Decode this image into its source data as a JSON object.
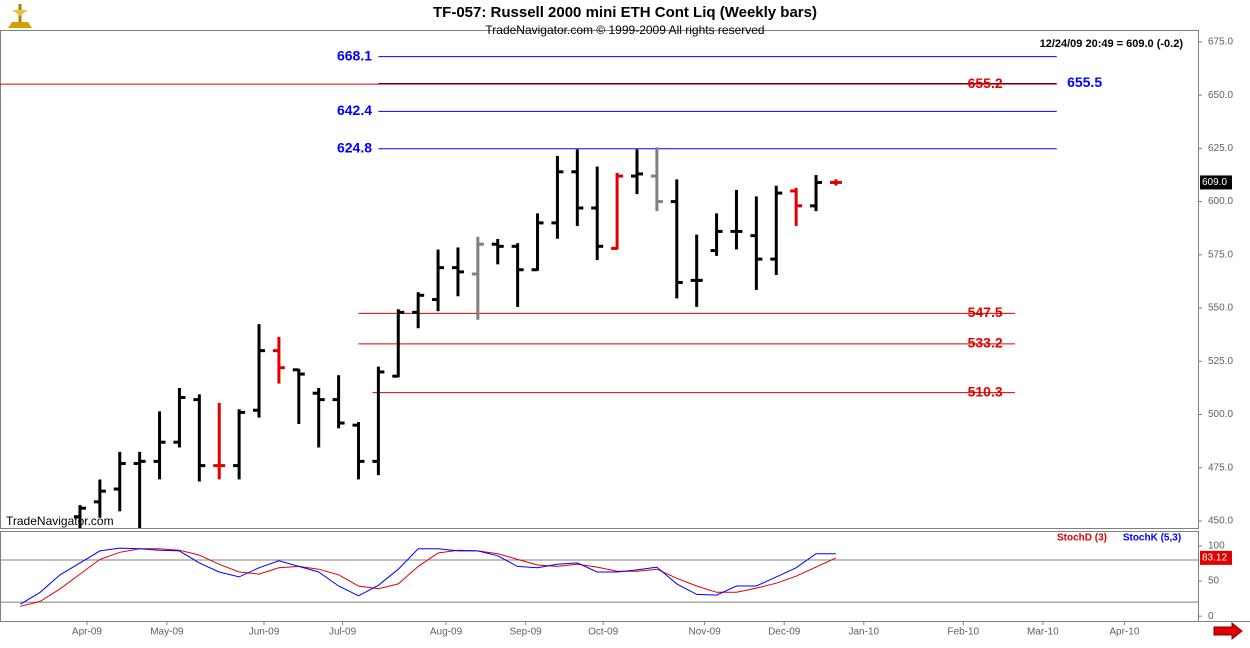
{
  "chart_data": [
    {
      "type": "ohlc",
      "title": "TF-057:  Russell 2000 mini ETH Cont Liq  (Weekly bars)",
      "subtitle": "TradeNavigator.com © 1999-2009 All rights reserved",
      "info": "12/24/09 20:49 = 609.0 (-0.2)",
      "watermark": "TradeNavigator.com",
      "x": [
        0,
        1,
        2,
        3,
        4,
        5,
        6,
        7,
        8,
        9,
        10,
        11,
        12,
        13,
        14,
        15,
        16,
        17,
        18,
        19,
        20,
        21,
        22,
        23,
        24,
        25,
        26,
        27,
        28,
        29,
        30,
        31,
        32,
        33,
        34,
        35,
        36,
        37,
        38
      ],
      "open": [
        452,
        459,
        465,
        477,
        478,
        487,
        507,
        476,
        476,
        502,
        530,
        521,
        510,
        507,
        495,
        478,
        518,
        548,
        554,
        569,
        566,
        580,
        579,
        568,
        590,
        614,
        597,
        578,
        612,
        612,
        600,
        563,
        577,
        586,
        584,
        573,
        605,
        598,
        609
      ],
      "high": [
        457,
        469,
        482,
        482,
        501,
        512,
        509,
        505,
        502,
        542,
        536,
        521,
        512,
        518,
        496,
        522,
        549,
        557,
        577,
        578,
        583,
        582,
        580,
        594,
        621,
        624,
        616,
        613,
        624,
        625,
        610,
        584,
        594,
        605,
        602,
        607,
        606,
        612,
        610
      ],
      "low": [
        447,
        452,
        455,
        447,
        470,
        485,
        469,
        470,
        470,
        499,
        515,
        496,
        485,
        494,
        470,
        472,
        518,
        541,
        549,
        556,
        545,
        571,
        551,
        568,
        583,
        589,
        573,
        578,
        604,
        596,
        555,
        551,
        575,
        578,
        559,
        566,
        589,
        596,
        608
      ],
      "close": [
        456,
        464,
        477,
        478,
        487,
        508,
        476,
        476,
        501,
        530,
        522,
        519,
        507,
        496,
        478,
        520,
        548,
        556,
        569,
        567,
        580,
        579,
        568,
        590,
        614,
        597,
        579,
        612,
        613,
        600,
        562,
        563,
        586,
        586,
        573,
        604,
        598,
        609,
        609
      ],
      "colors": [
        "#000000",
        "#000000",
        "#000000",
        "#000000",
        "#000000",
        "#000000",
        "#000000",
        "#e00000",
        "#000000",
        "#000000",
        "#e00000",
        "#000000",
        "#000000",
        "#000000",
        "#000000",
        "#000000",
        "#000000",
        "#000000",
        "#000000",
        "#000000",
        "#808080",
        "#000000",
        "#000000",
        "#000000",
        "#000000",
        "#000000",
        "#000000",
        "#e00000",
        "#000000",
        "#808080",
        "#000000",
        "#000000",
        "#000000",
        "#000000",
        "#000000",
        "#000000",
        "#e00000",
        "#000000",
        "#e00000"
      ],
      "xlim": [
        -4.02,
        56.2
      ],
      "xticks": [
        {
          "value": 0.35,
          "label": "Apr-09"
        },
        {
          "value": 4.37,
          "label": "May-09"
        },
        {
          "value": 9.25,
          "label": "Jun-09"
        },
        {
          "value": 13.2,
          "label": "Jul-09"
        },
        {
          "value": 18.4,
          "label": "Aug-09"
        },
        {
          "value": 22.4,
          "label": "Sep-09"
        },
        {
          "value": 26.3,
          "label": "Oct-09"
        },
        {
          "value": 31.4,
          "label": "Nov-09"
        },
        {
          "value": 35.4,
          "label": "Dec-09"
        },
        {
          "value": 39.4,
          "label": "Jan-10"
        },
        {
          "value": 44.4,
          "label": "Feb-10"
        },
        {
          "value": 48.4,
          "label": "Mar-10"
        },
        {
          "value": 52.5,
          "label": "Apr-10"
        }
      ],
      "ylim": [
        446.7,
        680.6
      ],
      "yticks": [
        {
          "value": 450,
          "label": "450.0"
        },
        {
          "value": 475,
          "label": "475.0"
        },
        {
          "value": 500,
          "label": "500.0"
        },
        {
          "value": 525,
          "label": "525.0"
        },
        {
          "value": 550,
          "label": "550.0"
        },
        {
          "value": 575,
          "label": "575.0"
        },
        {
          "value": 600,
          "label": "600.0"
        },
        {
          "value": 625,
          "label": "625.0"
        },
        {
          "value": 650,
          "label": "650.0"
        },
        {
          "value": 675,
          "label": "675.0"
        }
      ],
      "last_price": {
        "value": 609,
        "label": "609.0"
      },
      "levels": [
        {
          "value": 668.1,
          "color": "#0000ff",
          "label_color": "#0000ff",
          "x_range": [
            15,
            49.1
          ],
          "label_x": 13.8
        },
        {
          "value": 655.5,
          "color": "#000060",
          "label_color": "#0000ff",
          "x_range": [
            15,
            49.1
          ],
          "label_x": 50.5
        },
        {
          "value": 655.2,
          "color": "#e00000",
          "label_color": "#e00000",
          "x_range": [
            -4.02,
            49.1
          ],
          "label_x": 45.5
        },
        {
          "value": 642.4,
          "color": "#0000ff",
          "label_color": "#0000ff",
          "x_range": [
            15,
            49.1
          ],
          "label_x": 13.8
        },
        {
          "value": 624.8,
          "color": "#0000ff",
          "label_color": "#0000ff",
          "x_range": [
            15,
            49.1
          ],
          "label_x": 13.8
        },
        {
          "value": 547.5,
          "color": "#e00000",
          "label_color": "#e00000",
          "x_range": [
            14,
            47
          ],
          "label_x": 45.5
        },
        {
          "value": 533.2,
          "color": "#e00000",
          "label_color": "#e00000",
          "x_range": [
            14,
            47
          ],
          "label_x": 45.5
        },
        {
          "value": 510.3,
          "color": "#e00000",
          "label_color": "#e00000",
          "x_range": [
            14.7,
            47
          ],
          "label_x": 45.5
        }
      ]
    },
    {
      "type": "line",
      "x": [
        -3,
        -2,
        -1,
        0,
        1,
        2,
        3,
        4,
        5,
        6,
        7,
        8,
        9,
        10,
        11,
        12,
        13,
        14,
        15,
        16,
        17,
        18,
        19,
        20,
        21,
        22,
        23,
        24,
        25,
        26,
        27,
        28,
        29,
        30,
        31,
        32,
        33,
        34,
        35,
        36,
        37,
        38
      ],
      "series": [
        {
          "name": "StochD (3)",
          "color": "#e00000",
          "values": [
            14,
            21,
            39,
            60,
            81,
            91,
            96,
            96,
            94,
            87,
            74,
            63,
            60,
            69,
            71,
            67,
            59,
            43,
            39,
            46,
            71,
            90,
            94,
            93,
            89,
            81,
            73,
            71,
            74,
            70,
            64,
            64,
            67,
            54,
            43,
            34,
            34,
            40,
            47,
            57,
            70,
            83.12
          ]
        },
        {
          "name": "StochK (5,3)",
          "color": "#0000ff",
          "values": [
            17,
            34,
            59,
            76,
            93,
            97,
            96,
            94,
            93,
            76,
            63,
            56,
            69,
            79,
            71,
            63,
            43,
            29,
            44,
            67,
            96,
            96,
            93,
            93,
            86,
            71,
            69,
            74,
            76,
            63,
            63,
            66,
            70,
            46,
            31,
            30,
            43,
            43,
            56,
            69,
            89,
            89
          ]
        }
      ],
      "xlim": [
        -4.02,
        56.2
      ],
      "ylim": [
        -34,
        120
      ],
      "yticks": [
        0,
        50,
        100
      ],
      "levels": [
        20,
        80
      ]
    }
  ]
}
